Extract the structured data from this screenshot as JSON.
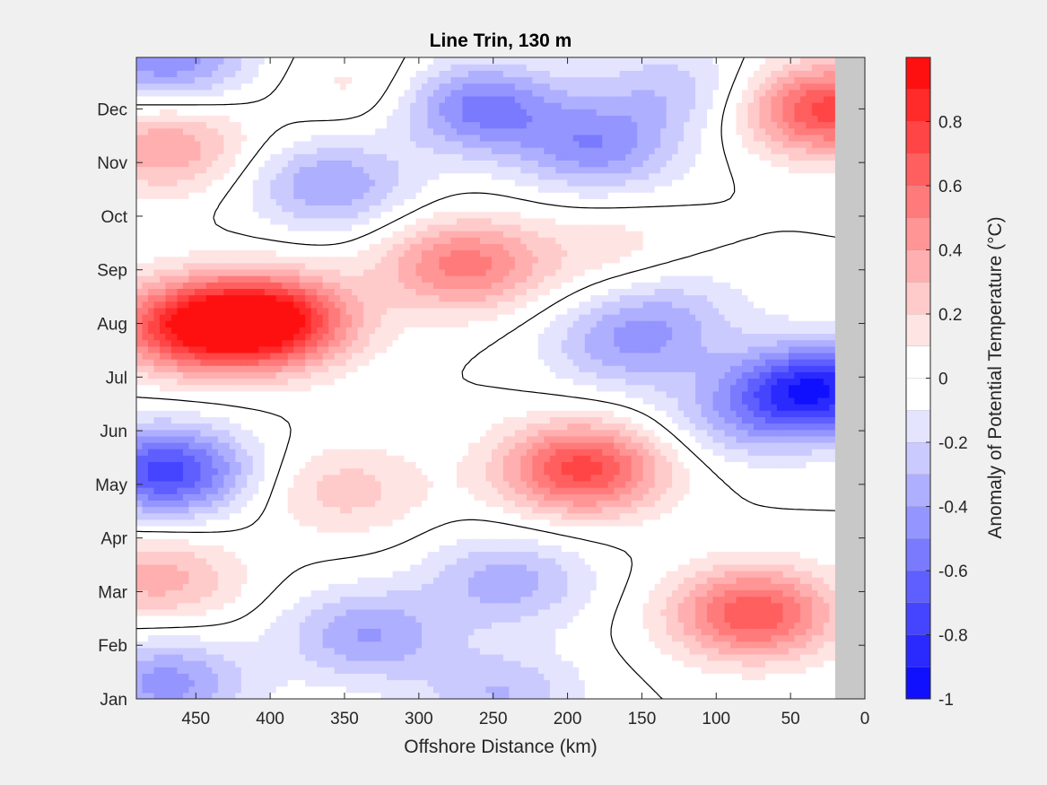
{
  "chart_data": {
    "type": "heatmap",
    "title": "Line Trin, 130 m",
    "xlabel": "Offshore Distance (km)",
    "ylabel": "",
    "colorbar_label": "Anomaly of Potential Temperature (°C)",
    "x_ticks": [
      "450",
      "400",
      "350",
      "300",
      "250",
      "200",
      "150",
      "100",
      "50",
      "0"
    ],
    "x_tick_values": [
      450,
      400,
      350,
      300,
      250,
      200,
      150,
      100,
      50,
      0
    ],
    "xlim": [
      490,
      0
    ],
    "y_ticks": [
      "Jan",
      "Feb",
      "Mar",
      "Apr",
      "May",
      "Jun",
      "Jul",
      "Aug",
      "Sep",
      "Oct",
      "Nov",
      "Dec"
    ],
    "y_tick_values": [
      1,
      2,
      3,
      4,
      5,
      6,
      7,
      8,
      9,
      10,
      11,
      12
    ],
    "ylim": [
      1,
      12.96
    ],
    "colorbar_ticks": [
      "0.8",
      "0.6",
      "0.4",
      "0.2",
      "0",
      "-0.2",
      "-0.4",
      "-0.6",
      "-0.8",
      "-1"
    ],
    "colorbar_tick_values": [
      0.8,
      0.6,
      0.4,
      0.2,
      0,
      -0.2,
      -0.4,
      -0.6,
      -0.8,
      -1
    ],
    "clim": [
      -1,
      1
    ],
    "levels": [
      -1,
      -0.9,
      -0.8,
      -0.7,
      -0.6,
      -0.5,
      -0.4,
      -0.3,
      -0.2,
      -0.1,
      0,
      0.1,
      0.2,
      0.3,
      0.4,
      0.5,
      0.6,
      0.7,
      0.8,
      0.9,
      1
    ],
    "masked_region_x": [
      20,
      0
    ],
    "colors": {
      "negative_extreme": "#0000ff",
      "positive_extreme": "#ff0000",
      "neutral": "#ffffff",
      "mask": "#c8c8c8",
      "contour": "#000000"
    },
    "anomaly_centers": [
      {
        "x": 400,
        "y": 8.05,
        "value": 0.95
      },
      {
        "x": 455,
        "y": 7.95,
        "value": 0.75
      },
      {
        "x": 270,
        "y": 9.1,
        "value": 0.55
      },
      {
        "x": 190,
        "y": 5.3,
        "value": 0.75
      },
      {
        "x": 75,
        "y": 2.6,
        "value": 0.7
      },
      {
        "x": 25,
        "y": 12.0,
        "value": 0.75
      },
      {
        "x": 470,
        "y": 11.3,
        "value": 0.4
      },
      {
        "x": 475,
        "y": 3.25,
        "value": 0.35
      },
      {
        "x": 350,
        "y": 4.9,
        "value": 0.25
      },
      {
        "x": 335,
        "y": 12.4,
        "value": 0.15
      },
      {
        "x": 170,
        "y": 9.4,
        "value": 0.15
      },
      {
        "x": 470,
        "y": 5.25,
        "value": -0.75
      },
      {
        "x": 30,
        "y": 6.8,
        "value": -0.85
      },
      {
        "x": 260,
        "y": 12.05,
        "value": -0.55
      },
      {
        "x": 180,
        "y": 11.3,
        "value": -0.45
      },
      {
        "x": 360,
        "y": 10.6,
        "value": -0.4
      },
      {
        "x": 160,
        "y": 7.6,
        "value": -0.35
      },
      {
        "x": 335,
        "y": 2.2,
        "value": -0.4
      },
      {
        "x": 240,
        "y": 3.2,
        "value": -0.35
      },
      {
        "x": 470,
        "y": 1.3,
        "value": -0.45
      },
      {
        "x": 470,
        "y": 12.95,
        "value": -0.5
      },
      {
        "x": 130,
        "y": 8.3,
        "value": -0.2
      },
      {
        "x": 80,
        "y": 6.3,
        "value": -0.3
      },
      {
        "x": 245,
        "y": 1.1,
        "value": -0.3
      },
      {
        "x": 130,
        "y": 12.4,
        "value": -0.25
      }
    ]
  }
}
